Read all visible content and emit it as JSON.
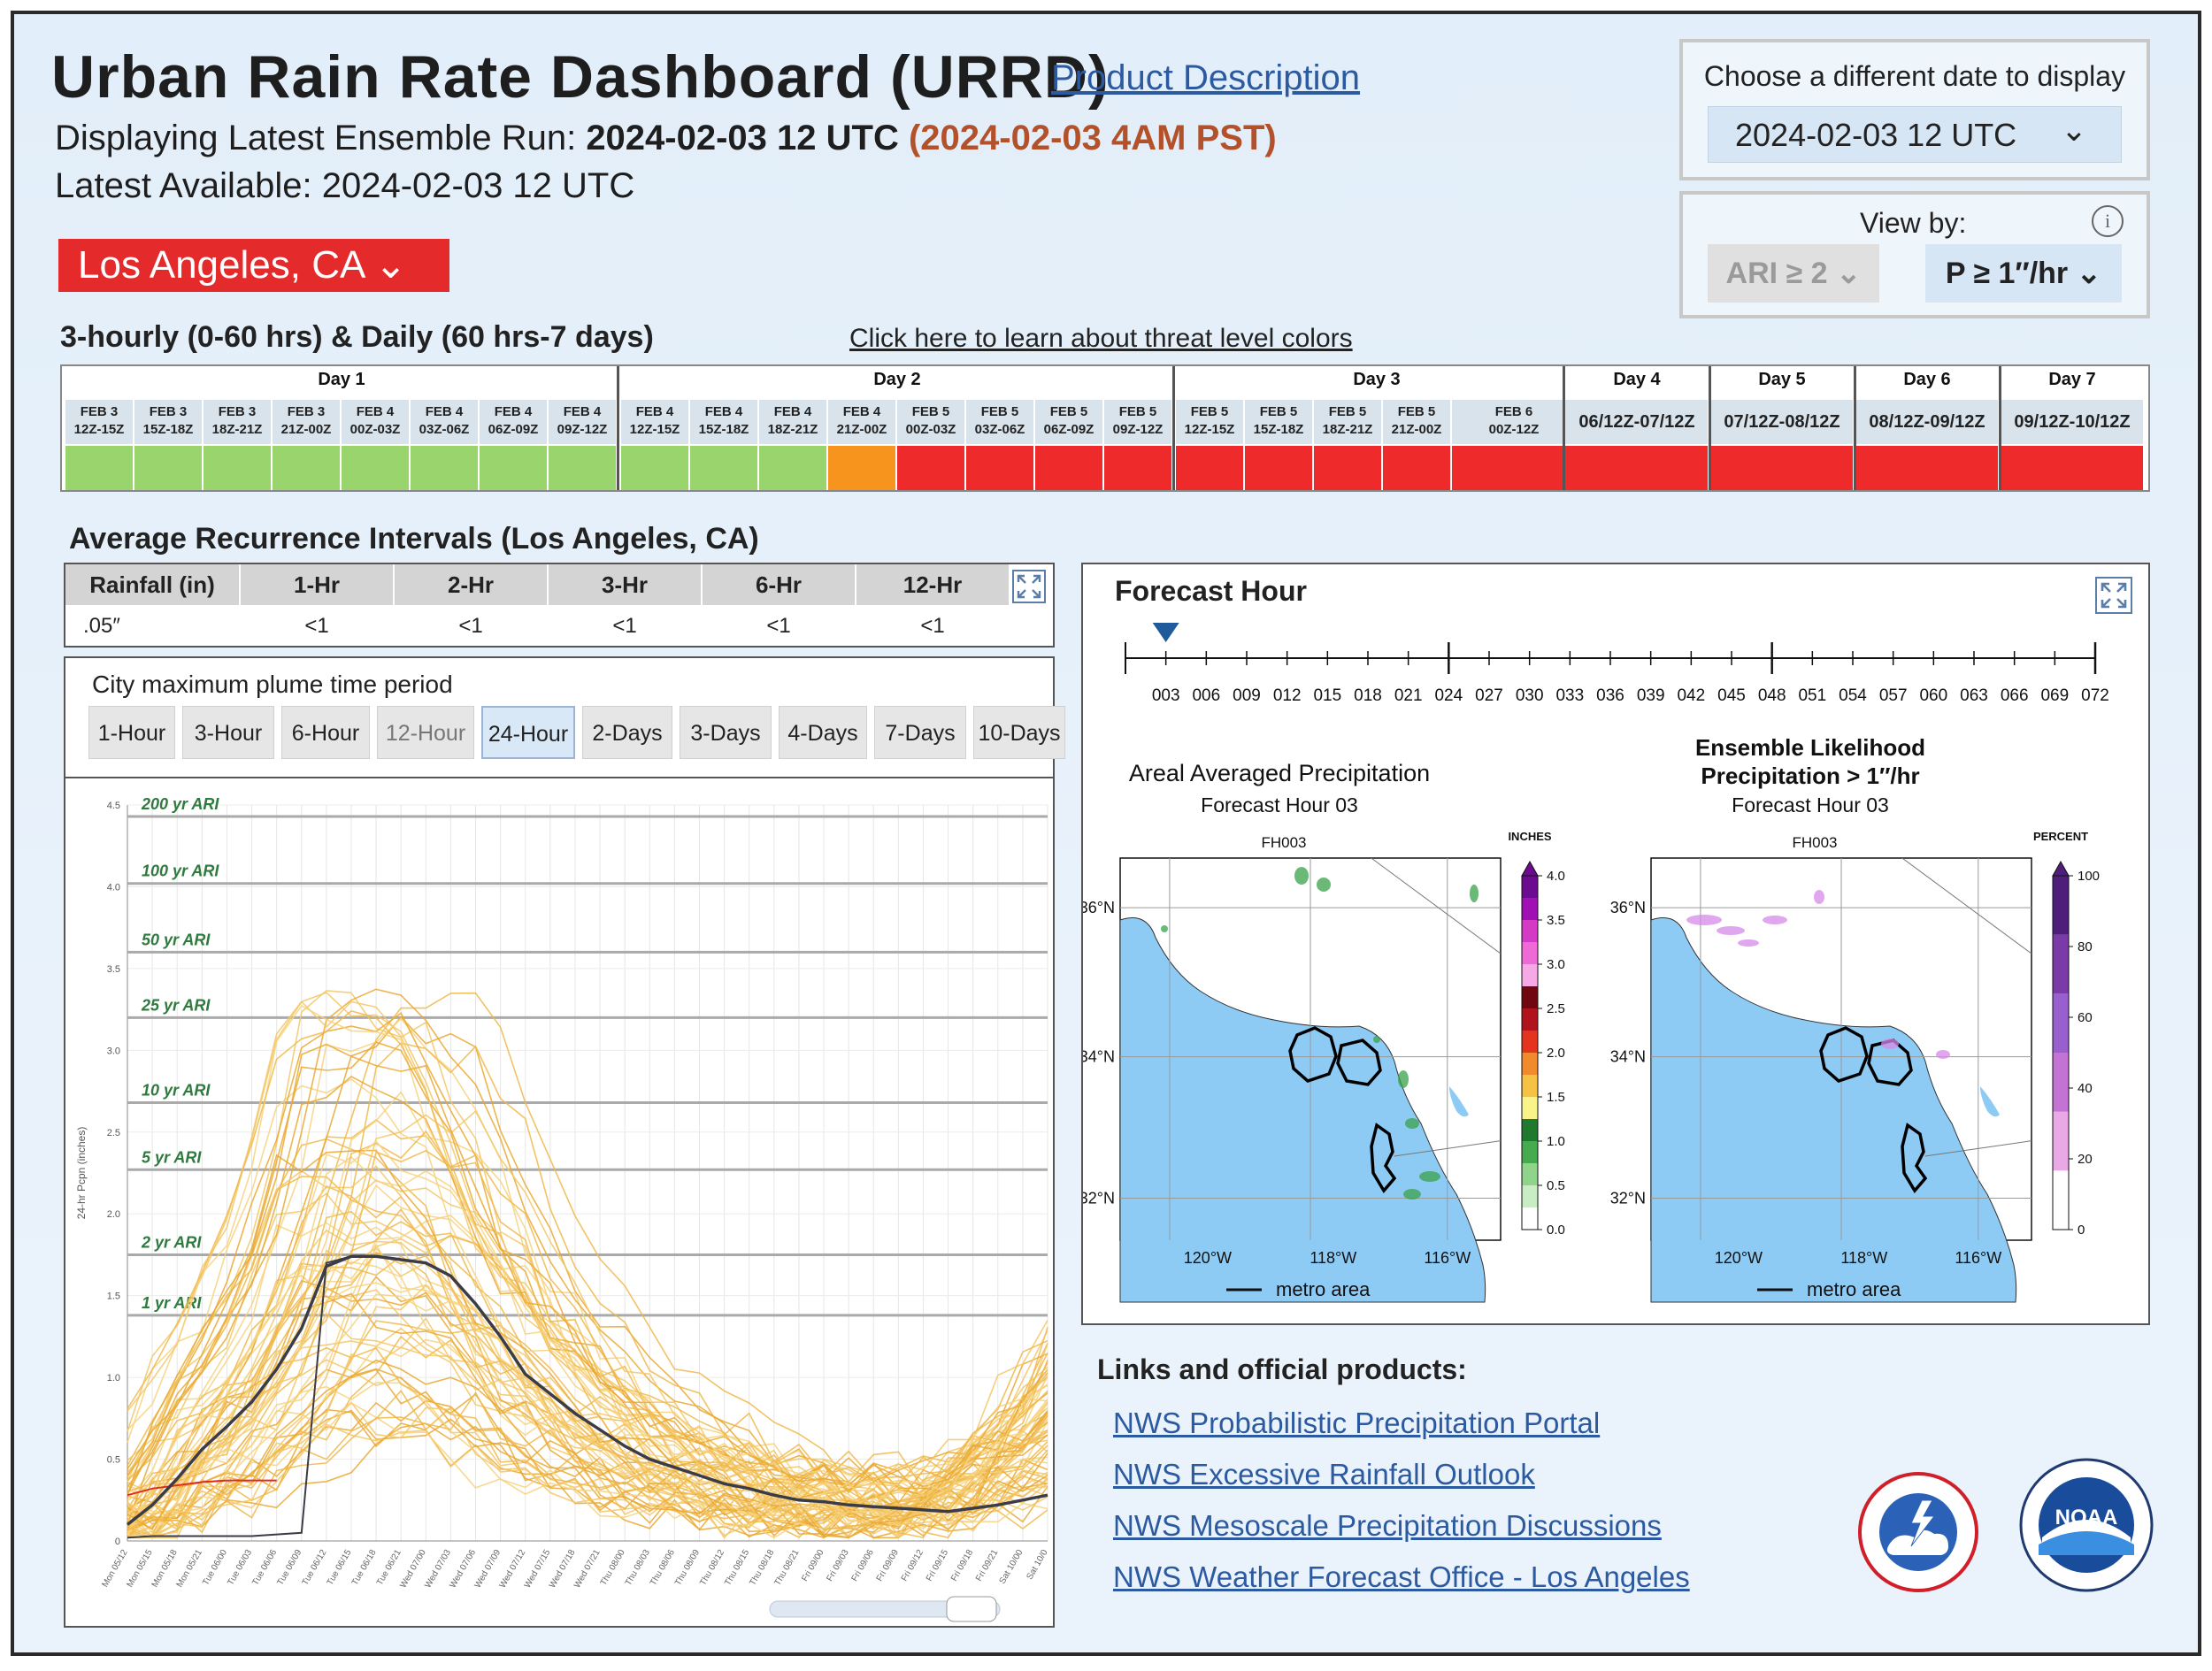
{
  "header": {
    "title": "Urban Rain Rate Dashboard (URRD)",
    "product_link": "Product Description",
    "displaying_label": "Displaying Latest Ensemble Run: ",
    "displaying_run": "2024-02-03 12 UTC",
    "displaying_pst": "(2024-02-03 4AM PST)",
    "latest_label": "Latest Available: ",
    "latest_value": "2024-02-03 12 UTC",
    "city": "Los Angeles, CA ⌄"
  },
  "date_selector": {
    "label": "Choose a different date to display",
    "value": "2024-02-03 12 UTC",
    "chevron": "⌄"
  },
  "view_by": {
    "label": "View by:",
    "info": "i",
    "option_ari": "ARI ≥ 2 ⌄",
    "option_p": "P ≥ 1″/hr ⌄"
  },
  "threat": {
    "section_title": "3-hourly (0-60 hrs) & Daily (60 hrs-7 days)",
    "learn_link": "Click here to learn about threat level colors",
    "colors": {
      "green": "#9ad46c",
      "orange": "#f7941d",
      "red": "#ee2a2a"
    },
    "days": [
      {
        "label": "Day 1",
        "cells": [
          {
            "date": "FEB 3",
            "time": "12Z-15Z",
            "level": "green"
          },
          {
            "date": "FEB 3",
            "time": "15Z-18Z",
            "level": "green"
          },
          {
            "date": "FEB 3",
            "time": "18Z-21Z",
            "level": "green"
          },
          {
            "date": "FEB 3",
            "time": "21Z-00Z",
            "level": "green"
          },
          {
            "date": "FEB 4",
            "time": "00Z-03Z",
            "level": "green"
          },
          {
            "date": "FEB 4",
            "time": "03Z-06Z",
            "level": "green"
          },
          {
            "date": "FEB 4",
            "time": "06Z-09Z",
            "level": "green"
          },
          {
            "date": "FEB 4",
            "time": "09Z-12Z",
            "level": "green"
          }
        ]
      },
      {
        "label": "Day 2",
        "cells": [
          {
            "date": "FEB 4",
            "time": "12Z-15Z",
            "level": "green"
          },
          {
            "date": "FEB 4",
            "time": "15Z-18Z",
            "level": "green"
          },
          {
            "date": "FEB 4",
            "time": "18Z-21Z",
            "level": "green"
          },
          {
            "date": "FEB 4",
            "time": "21Z-00Z",
            "level": "orange"
          },
          {
            "date": "FEB 5",
            "time": "00Z-03Z",
            "level": "red"
          },
          {
            "date": "FEB 5",
            "time": "03Z-06Z",
            "level": "red"
          },
          {
            "date": "FEB 5",
            "time": "06Z-09Z",
            "level": "red"
          },
          {
            "date": "FEB 5",
            "time": "09Z-12Z",
            "level": "red"
          }
        ]
      },
      {
        "label": "Day 3",
        "cells": [
          {
            "date": "FEB 5",
            "time": "12Z-15Z",
            "level": "red"
          },
          {
            "date": "FEB 5",
            "time": "15Z-18Z",
            "level": "red"
          },
          {
            "date": "FEB 5",
            "time": "18Z-21Z",
            "level": "red"
          },
          {
            "date": "FEB 5",
            "time": "21Z-00Z",
            "level": "red"
          },
          {
            "date": "FEB 6",
            "time": "00Z-12Z",
            "level": "red"
          }
        ]
      }
    ],
    "daily": [
      {
        "label": "Day 4",
        "range": "06/12Z-07/12Z",
        "level": "red"
      },
      {
        "label": "Day 5",
        "range": "07/12Z-08/12Z",
        "level": "red"
      },
      {
        "label": "Day 6",
        "range": "08/12Z-09/12Z",
        "level": "red"
      },
      {
        "label": "Day 7",
        "range": "09/12Z-10/12Z",
        "level": "red"
      }
    ]
  },
  "ari": {
    "title": "Average Recurrence Intervals (Los Angeles, CA)",
    "rowhead": "Rainfall (in)",
    "rowval": ".05″",
    "columns": [
      "1-Hr",
      "2-Hr",
      "3-Hr",
      "6-Hr",
      "12-Hr"
    ],
    "values": [
      "<1",
      "<1",
      "<1",
      "<1",
      "<1"
    ]
  },
  "plume": {
    "heading": "City maximum plume time period",
    "tabs": [
      "1-Hour",
      "3-Hour",
      "6-Hour",
      "12-Hour",
      "24-Hour",
      "2-Days",
      "3-Days",
      "4-Days",
      "7-Days",
      "10-Days"
    ],
    "active_tab": "24-Hour",
    "disabled_tab": "12-Hour"
  },
  "chart_data": {
    "type": "line",
    "ylabel": "24-hr Pcpn (inches)",
    "ylim": [
      0,
      4.5
    ],
    "yticks": [
      "0",
      "0.5",
      "1.0",
      "1.5",
      "2.0",
      "2.5",
      "3.0",
      "3.5",
      "4.0",
      "4.5"
    ],
    "ari_thresholds": [
      {
        "label": "1 yr ARI",
        "value": 1.38
      },
      {
        "label": "2 yr ARI",
        "value": 1.75
      },
      {
        "label": "5 yr ARI",
        "value": 2.27
      },
      {
        "label": "10 yr ARI",
        "value": 2.68
      },
      {
        "label": "25 yr ARI",
        "value": 3.2
      },
      {
        "label": "50 yr ARI",
        "value": 3.6
      },
      {
        "label": "100 yr ARI",
        "value": 4.02
      },
      {
        "label": "200 yr ARI",
        "value": 4.43
      }
    ],
    "x_ticks": [
      "Mon 05/12",
      "Mon 05/15",
      "Mon 05/18",
      "Mon 05/21",
      "Tue 06/00",
      "Tue 06/03",
      "Tue 06/06",
      "Tue 06/09",
      "Tue 06/12",
      "Tue 06/15",
      "Tue 06/18",
      "Tue 06/21",
      "Wed 07/00",
      "Wed 07/03",
      "Wed 07/06",
      "Wed 07/09",
      "Wed 07/12",
      "Wed 07/15",
      "Wed 07/18",
      "Wed 07/21",
      "Thu 08/00",
      "Thu 08/03",
      "Thu 08/06",
      "Thu 08/09",
      "Thu 08/12",
      "Thu 08/15",
      "Thu 08/18",
      "Thu 08/21",
      "Fri 09/00",
      "Fri 09/03",
      "Fri 09/06",
      "Fri 09/09",
      "Fri 09/12",
      "Fri 09/15",
      "Fri 09/18",
      "Fri 09/21",
      "Sat 10/00",
      "Sat 10/0"
    ],
    "series": [
      {
        "role": "mean",
        "color": "#3c3c46",
        "values": [
          0.1,
          0.22,
          0.38,
          0.56,
          0.7,
          0.85,
          1.05,
          1.3,
          1.68,
          1.74,
          1.74,
          1.72,
          1.7,
          1.62,
          1.45,
          1.25,
          1.02,
          0.9,
          0.78,
          0.68,
          0.58,
          0.5,
          0.45,
          0.4,
          0.35,
          0.32,
          0.28,
          0.25,
          0.24,
          0.22,
          0.21,
          0.2,
          0.19,
          0.18,
          0.2,
          0.22,
          0.25,
          0.28
        ]
      },
      {
        "role": "observed",
        "color": "#e02b20",
        "values": [
          0.28,
          0.32,
          0.34,
          0.36,
          0.37,
          0.37,
          0.37
        ]
      },
      {
        "role": "step",
        "color": "#3c3c46",
        "values": [
          0.02,
          0.03,
          0.03,
          0.03,
          0.03,
          0.03,
          0.04,
          0.05,
          1.7,
          1.74,
          1.74
        ]
      }
    ]
  },
  "forecast": {
    "title": "Forecast Hour",
    "hours": [
      "003",
      "006",
      "009",
      "012",
      "015",
      "018",
      "021",
      "024",
      "027",
      "030",
      "033",
      "036",
      "039",
      "042",
      "045",
      "048",
      "051",
      "054",
      "057",
      "060",
      "063",
      "066",
      "069",
      "072"
    ],
    "selected_hour": "003",
    "map1": {
      "title": "Areal Averaged Precipitation",
      "subtitle": "Forecast Hour 03",
      "label": "FH003",
      "unit": "INCHES",
      "scale": [
        "4.0",
        "3.5",
        "3.0",
        "2.5",
        "2.0",
        "1.5",
        "1.0",
        "0.5",
        "0.0"
      ],
      "lats": [
        "36°N",
        "34°N",
        "32°N"
      ],
      "lons": [
        "120°W",
        "118°W",
        "116°W"
      ],
      "legend": "metro area"
    },
    "map2": {
      "title_line1": "Ensemble Likelihood",
      "title_line2": "Precipitation > 1″/hr",
      "subtitle": "Forecast Hour 03",
      "label": "FH003",
      "unit": "PERCENT",
      "scale": [
        "100",
        "80",
        "60",
        "40",
        "20",
        "0"
      ],
      "lats": [
        "36°N",
        "34°N",
        "32°N"
      ],
      "lons": [
        "120°W",
        "118°W",
        "116°W"
      ],
      "legend": "metro area"
    }
  },
  "links": {
    "heading": "Links and official products:",
    "items": [
      "NWS Probabilistic Precipitation Portal",
      "NWS Excessive Rainfall Outlook",
      "NWS Mesoscale Precipitation Discussions",
      "NWS Weather Forecast Office - Los Angeles"
    ]
  },
  "logos": {
    "nws": "NATIONAL WEATHER SERVICE",
    "noaa": "NOAA",
    "noaa_ring": "NATIONAL OCEANIC AND ATMOSPHERIC ADMINISTRATION · U.S. DEPARTMENT OF COMMERCE"
  }
}
